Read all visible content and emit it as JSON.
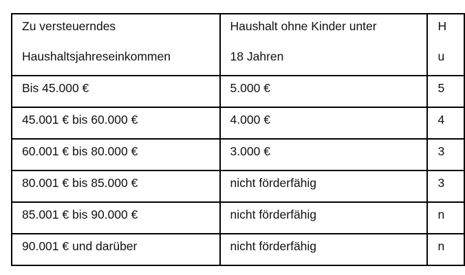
{
  "table": {
    "header": [
      {
        "line1": "Zu versteuerndes",
        "line2": "Haushaltsjahreseinkommen"
      },
      {
        "line1": "Haushalt ohne Kinder unter",
        "line2": "18 Jahren"
      },
      {
        "line1": "H",
        "line2": "u"
      }
    ],
    "rows": [
      [
        "Bis 45.000 €",
        "5.000 €",
        "5"
      ],
      [
        "45.001 € bis 60.000 €",
        "4.000 €",
        "4"
      ],
      [
        "60.001 € bis 80.000 €",
        "3.000 €",
        "3"
      ],
      [
        "80.001 € bis 85.000 €",
        "nicht förderfähig",
        "3"
      ],
      [
        "85.001 € bis 90.000 €",
        "nicht förderfähig",
        "n"
      ],
      [
        "90.001 € und darüber",
        "nicht förderfähig",
        "n"
      ]
    ]
  }
}
